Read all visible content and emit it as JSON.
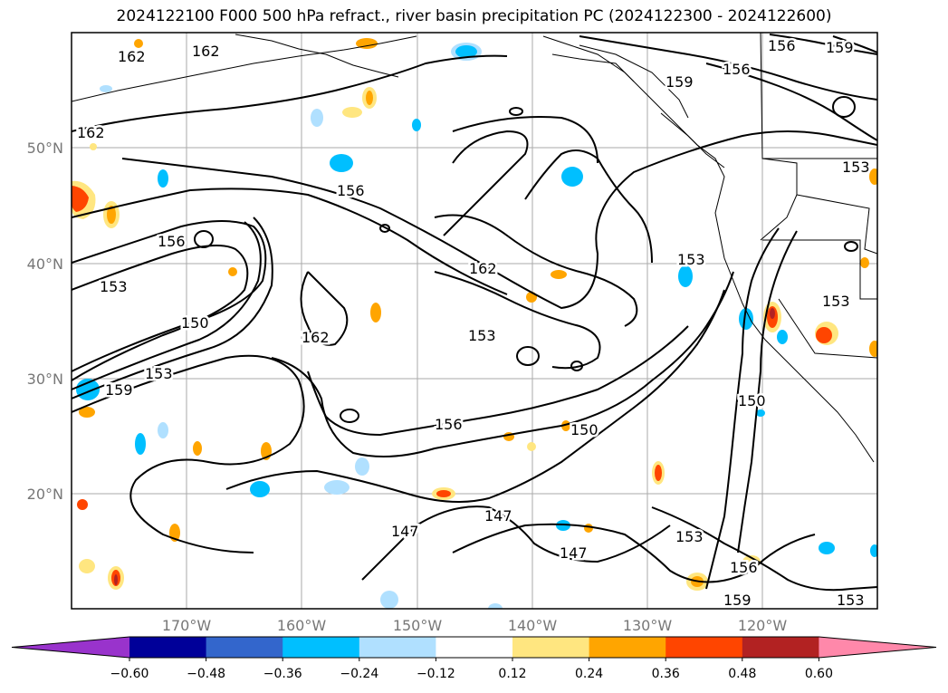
{
  "title": "2024122100 F000 500 hPa refract., river basin precipitation PC (2024122300 - 2024122600)",
  "latitudes": [
    "50°N",
    "40°N",
    "30°N",
    "20°N"
  ],
  "longitudes": [
    "170°W",
    "160°W",
    "150°W",
    "140°W",
    "130°W",
    "120°W"
  ],
  "colorbar": {
    "colors": [
      "#9933cc",
      "#000099",
      "#3366cc",
      "#00bfff",
      "#b0e0ff",
      "#ffffff",
      "#ffe680",
      "#ffa500",
      "#ff4500",
      "#b22222",
      "#ff88aa"
    ],
    "ticks": [
      "−0.60",
      "−0.48",
      "−0.36",
      "−0.24",
      "−0.12",
      "0.12",
      "0.24",
      "0.36",
      "0.48",
      "0.60"
    ]
  },
  "contour_labels": [
    "162",
    "162",
    "162",
    "156",
    "159",
    "156",
    "159",
    "153",
    "156",
    "153",
    "150",
    "159",
    "153",
    "156",
    "162",
    "162",
    "153",
    "150",
    "156",
    "150",
    "147",
    "147",
    "153",
    "156",
    "147",
    "159",
    "153",
    "153",
    "153"
  ]
}
